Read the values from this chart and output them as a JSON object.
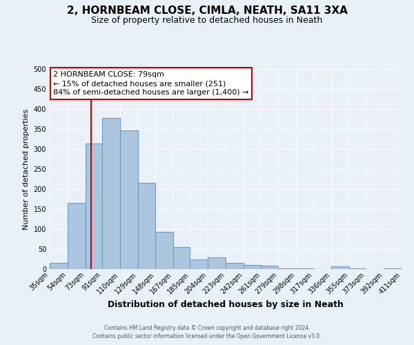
{
  "title": "2, HORNBEAM CLOSE, CIMLA, NEATH, SA11 3XA",
  "subtitle": "Size of property relative to detached houses in Neath",
  "xlabel": "Distribution of detached houses by size in Neath",
  "ylabel": "Number of detached properties",
  "bin_edges": [
    35,
    54,
    73,
    91,
    110,
    129,
    148,
    167,
    185,
    204,
    223,
    242,
    261,
    279,
    298,
    317,
    336,
    355,
    373,
    392,
    411
  ],
  "bar_heights": [
    15,
    165,
    313,
    378,
    346,
    215,
    93,
    55,
    25,
    29,
    15,
    11,
    8,
    2,
    1,
    0,
    7,
    1,
    0,
    1
  ],
  "bar_color": "#adc6e0",
  "bar_edgecolor": "#6b9dc2",
  "bar_linewidth": 0.8,
  "vline_x": 79,
  "vline_color": "#cc0000",
  "annotation_line1": "2 HORNBEAM CLOSE: 79sqm",
  "annotation_line2": "← 15% of detached houses are smaller (251)",
  "annotation_line3": "84% of semi-detached houses are larger (1,400) →",
  "ylim": [
    0,
    500
  ],
  "yticks": [
    0,
    50,
    100,
    150,
    200,
    250,
    300,
    350,
    400,
    450,
    500
  ],
  "bg_color": "#eaf0f8",
  "plot_bg_color": "#eaf0f8",
  "footer_line1": "Contains HM Land Registry data © Crown copyright and database right 2024.",
  "footer_line2": "Contains public sector information licensed under the Open Government Licence v3.0.",
  "tick_labels": [
    "35sqm",
    "54sqm",
    "73sqm",
    "91sqm",
    "110sqm",
    "129sqm",
    "148sqm",
    "167sqm",
    "185sqm",
    "204sqm",
    "223sqm",
    "242sqm",
    "261sqm",
    "279sqm",
    "298sqm",
    "317sqm",
    "336sqm",
    "355sqm",
    "373sqm",
    "392sqm",
    "411sqm"
  ],
  "title_fontsize": 11,
  "subtitle_fontsize": 9,
  "xlabel_fontsize": 9,
  "ylabel_fontsize": 8,
  "tick_fontsize": 7,
  "annotation_fontsize": 8,
  "footer_fontsize": 5.5
}
